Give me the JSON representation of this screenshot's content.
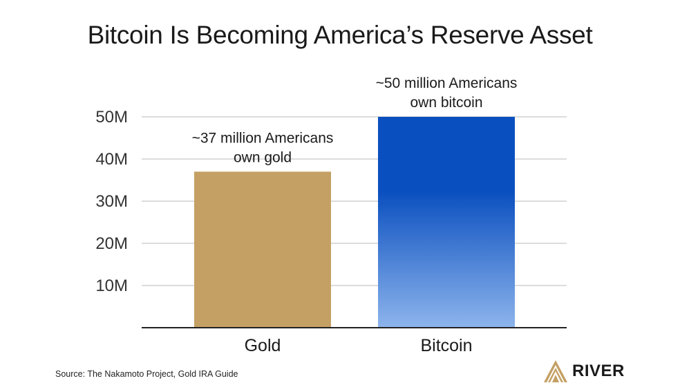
{
  "chart_data": {
    "type": "bar",
    "title": "Bitcoin Is Becoming America’s Reserve Asset",
    "categories": [
      "Gold",
      "Bitcoin"
    ],
    "values": [
      37,
      50
    ],
    "ylim": [
      0,
      50
    ],
    "yticks": [
      10,
      20,
      30,
      40,
      50
    ],
    "ytick_labels": [
      "10M",
      "20M",
      "30M",
      "40M",
      "50M"
    ],
    "grid": true,
    "annotations": [
      [
        "~37 million Americans",
        "own gold"
      ],
      [
        "~50 million Americans",
        "own bitcoin"
      ]
    ],
    "colors": {
      "gold": "#c4a064",
      "bitcoin_top": "#0a4fbf",
      "bitcoin_bottom": "#8db4ec",
      "grid": "#c8c8c8",
      "axis": "#222222"
    }
  },
  "footer": {
    "source": "Source: The Nakamoto Project, Gold IRA Guide",
    "brand_name": "RIVER",
    "brand_icon": "river-logo-icon"
  }
}
